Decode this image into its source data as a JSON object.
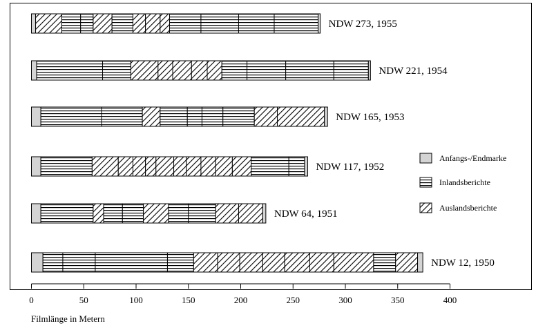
{
  "chart_data": {
    "type": "bar",
    "orientation": "horizontal",
    "stacked": true,
    "xlabel": "Filmlänge in Metern",
    "xlim": [
      0,
      400
    ],
    "x_ticks": [
      0,
      50,
      100,
      150,
      200,
      250,
      300,
      350,
      400
    ],
    "legend_position": "right",
    "legend": [
      {
        "key": "marke",
        "label": "Anfangs-/Endmarke",
        "pattern": "solid",
        "color": "#d4d4d4"
      },
      {
        "key": "inland",
        "label": "Inlandsberichte",
        "pattern": "horizontal-lines"
      },
      {
        "key": "ausland",
        "label": "Auslandsberichte",
        "pattern": "diagonal-hatch"
      }
    ],
    "bars": [
      {
        "label": "NDW 273, 1955",
        "segments": [
          {
            "type": "marke",
            "value": 4
          },
          {
            "type": "ausland",
            "value": 25
          },
          {
            "type": "inland",
            "value": 18
          },
          {
            "type": "inland",
            "value": 12
          },
          {
            "type": "ausland",
            "value": 18
          },
          {
            "type": "inland",
            "value": 20
          },
          {
            "type": "ausland",
            "value": 12
          },
          {
            "type": "ausland",
            "value": 14
          },
          {
            "type": "ausland",
            "value": 9
          },
          {
            "type": "inland",
            "value": 30
          },
          {
            "type": "inland",
            "value": 36
          },
          {
            "type": "inland",
            "value": 34
          },
          {
            "type": "inland",
            "value": 42
          },
          {
            "type": "marke",
            "value": 2
          }
        ]
      },
      {
        "label": "NDW 221, 1954",
        "segments": [
          {
            "type": "marke",
            "value": 5
          },
          {
            "type": "inland",
            "value": 63
          },
          {
            "type": "inland",
            "value": 27
          },
          {
            "type": "ausland",
            "value": 26
          },
          {
            "type": "ausland",
            "value": 14
          },
          {
            "type": "ausland",
            "value": 18
          },
          {
            "type": "ausland",
            "value": 15
          },
          {
            "type": "ausland",
            "value": 14
          },
          {
            "type": "inland",
            "value": 24
          },
          {
            "type": "inland",
            "value": 37
          },
          {
            "type": "inland",
            "value": 46
          },
          {
            "type": "inland",
            "value": 33
          },
          {
            "type": "marke",
            "value": 2
          }
        ]
      },
      {
        "label": "NDW 165, 1953",
        "segments": [
          {
            "type": "marke",
            "value": 9
          },
          {
            "type": "inland",
            "value": 58
          },
          {
            "type": "inland",
            "value": 39
          },
          {
            "type": "ausland",
            "value": 17
          },
          {
            "type": "inland",
            "value": 26
          },
          {
            "type": "inland",
            "value": 14
          },
          {
            "type": "inland",
            "value": 20
          },
          {
            "type": "inland",
            "value": 30
          },
          {
            "type": "ausland",
            "value": 22
          },
          {
            "type": "ausland",
            "value": 45
          },
          {
            "type": "marke",
            "value": 3
          }
        ]
      },
      {
        "label": "NDW 117, 1952",
        "segments": [
          {
            "type": "marke",
            "value": 9
          },
          {
            "type": "inland",
            "value": 49
          },
          {
            "type": "ausland",
            "value": 25
          },
          {
            "type": "ausland",
            "value": 14
          },
          {
            "type": "ausland",
            "value": 12
          },
          {
            "type": "ausland",
            "value": 10
          },
          {
            "type": "ausland",
            "value": 17
          },
          {
            "type": "ausland",
            "value": 12
          },
          {
            "type": "ausland",
            "value": 14
          },
          {
            "type": "ausland",
            "value": 14
          },
          {
            "type": "ausland",
            "value": 16
          },
          {
            "type": "ausland",
            "value": 18
          },
          {
            "type": "inland",
            "value": 36
          },
          {
            "type": "inland",
            "value": 15
          },
          {
            "type": "marke",
            "value": 3
          }
        ]
      },
      {
        "label": "NDW 64, 1951",
        "segments": [
          {
            "type": "marke",
            "value": 9
          },
          {
            "type": "inland",
            "value": 50
          },
          {
            "type": "ausland",
            "value": 10
          },
          {
            "type": "inland",
            "value": 18
          },
          {
            "type": "inland",
            "value": 20
          },
          {
            "type": "ausland",
            "value": 24
          },
          {
            "type": "inland",
            "value": 19
          },
          {
            "type": "inland",
            "value": 26
          },
          {
            "type": "ausland",
            "value": 22
          },
          {
            "type": "ausland",
            "value": 23
          },
          {
            "type": "marke",
            "value": 3
          }
        ]
      },
      {
        "label": "NDW 12, 1950",
        "segments": [
          {
            "type": "marke",
            "value": 11
          },
          {
            "type": "inland",
            "value": 19
          },
          {
            "type": "inland",
            "value": 31
          },
          {
            "type": "inland",
            "value": 69
          },
          {
            "type": "inland",
            "value": 25
          },
          {
            "type": "ausland",
            "value": 23
          },
          {
            "type": "ausland",
            "value": 21
          },
          {
            "type": "ausland",
            "value": 22
          },
          {
            "type": "ausland",
            "value": 21
          },
          {
            "type": "ausland",
            "value": 24
          },
          {
            "type": "ausland",
            "value": 23
          },
          {
            "type": "ausland",
            "value": 38
          },
          {
            "type": "inland",
            "value": 21
          },
          {
            "type": "ausland",
            "value": 21
          },
          {
            "type": "marke",
            "value": 5
          }
        ]
      }
    ]
  }
}
